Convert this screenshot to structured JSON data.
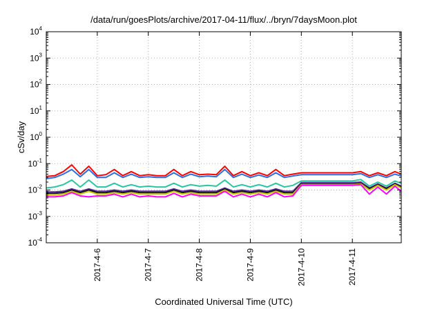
{
  "chart_data": {
    "type": "line",
    "title": "/data/run/goesPlots/archive/2017-04-11/flux/../bryn/7daysMoon.plot",
    "xlabel": "Coordinated Universal Time (UTC)",
    "ylabel": "cSv/day",
    "yscale": "log",
    "ylim": [
      0.0001,
      10000
    ],
    "y_ticks": [
      {
        "base": "10",
        "exp": "-4"
      },
      {
        "base": "10",
        "exp": "-3"
      },
      {
        "base": "10",
        "exp": "-2"
      },
      {
        "base": "10",
        "exp": "-1"
      },
      {
        "base": "10",
        "exp": "0"
      },
      {
        "base": "10",
        "exp": "1"
      },
      {
        "base": "10",
        "exp": "2"
      },
      {
        "base": "10",
        "exp": "3"
      },
      {
        "base": "10",
        "exp": "4"
      }
    ],
    "xlim": [
      "2017-04-05 00:00",
      "2017-04-11 23:00"
    ],
    "x_ticks": [
      "2017-4-6",
      "2017-4-7",
      "2017-4-8",
      "2017-4-9",
      "2017-4-10",
      "2017-4-11"
    ],
    "x_tick_dates": [
      "2017-04-06",
      "2017-04-07",
      "2017-04-08",
      "2017-04-09",
      "2017-04-10",
      "2017-04-11"
    ],
    "grid": true,
    "x": [
      "2017-04-05 00:00",
      "2017-04-05 04:00",
      "2017-04-05 08:00",
      "2017-04-05 12:00",
      "2017-04-05 16:00",
      "2017-04-05 20:00",
      "2017-04-06 00:00",
      "2017-04-06 04:00",
      "2017-04-06 08:00",
      "2017-04-06 12:00",
      "2017-04-06 16:00",
      "2017-04-06 20:00",
      "2017-04-07 00:00",
      "2017-04-07 04:00",
      "2017-04-07 08:00",
      "2017-04-07 12:00",
      "2017-04-07 16:00",
      "2017-04-07 20:00",
      "2017-04-08 00:00",
      "2017-04-08 04:00",
      "2017-04-08 08:00",
      "2017-04-08 12:00",
      "2017-04-08 16:00",
      "2017-04-08 20:00",
      "2017-04-09 00:00",
      "2017-04-09 04:00",
      "2017-04-09 08:00",
      "2017-04-09 12:00",
      "2017-04-09 16:00",
      "2017-04-09 20:00",
      "2017-04-10 00:00",
      "2017-04-10 04:00",
      "2017-04-10 08:00",
      "2017-04-10 12:00",
      "2017-04-10 16:00",
      "2017-04-10 20:00",
      "2017-04-11 00:00",
      "2017-04-11 04:00",
      "2017-04-11 08:00",
      "2017-04-11 12:00",
      "2017-04-11 16:00",
      "2017-04-11 20:00",
      "2017-04-11 23:00"
    ],
    "series": [
      {
        "color": "#ff0000",
        "values": [
          0.033,
          0.035,
          0.05,
          0.09,
          0.04,
          0.08,
          0.035,
          0.038,
          0.06,
          0.035,
          0.05,
          0.035,
          0.038,
          0.035,
          0.035,
          0.06,
          0.035,
          0.05,
          0.038,
          0.04,
          0.038,
          0.08,
          0.035,
          0.05,
          0.035,
          0.045,
          0.035,
          0.06,
          0.035,
          0.04,
          0.045,
          0.045,
          0.045,
          0.045,
          0.045,
          0.045,
          0.045,
          0.05,
          0.035,
          0.045,
          0.035,
          0.05,
          0.04
        ]
      },
      {
        "color": "#2a6ee6",
        "values": [
          0.027,
          0.03,
          0.04,
          0.06,
          0.032,
          0.06,
          0.03,
          0.03,
          0.045,
          0.03,
          0.04,
          0.03,
          0.032,
          0.03,
          0.03,
          0.045,
          0.03,
          0.04,
          0.032,
          0.034,
          0.032,
          0.06,
          0.03,
          0.04,
          0.03,
          0.037,
          0.03,
          0.045,
          0.03,
          0.034,
          0.038,
          0.038,
          0.038,
          0.038,
          0.038,
          0.038,
          0.038,
          0.042,
          0.03,
          0.038,
          0.03,
          0.04,
          0.034
        ]
      },
      {
        "color": "#26c7a0",
        "values": [
          0.012,
          0.013,
          0.016,
          0.024,
          0.013,
          0.024,
          0.013,
          0.013,
          0.018,
          0.013,
          0.016,
          0.013,
          0.014,
          0.013,
          0.013,
          0.018,
          0.013,
          0.016,
          0.014,
          0.015,
          0.014,
          0.024,
          0.013,
          0.016,
          0.013,
          0.016,
          0.013,
          0.018,
          0.013,
          0.015,
          0.022,
          0.022,
          0.022,
          0.022,
          0.022,
          0.022,
          0.022,
          0.025,
          0.014,
          0.02,
          0.014,
          0.022,
          0.018
        ]
      },
      {
        "color": "#5e2ba0",
        "values": [
          0.0085,
          0.0085,
          0.009,
          0.011,
          0.009,
          0.011,
          0.009,
          0.009,
          0.01,
          0.009,
          0.01,
          0.009,
          0.009,
          0.009,
          0.009,
          0.011,
          0.009,
          0.01,
          0.009,
          0.009,
          0.009,
          0.012,
          0.009,
          0.01,
          0.009,
          0.01,
          0.009,
          0.011,
          0.009,
          0.009,
          0.019,
          0.019,
          0.019,
          0.019,
          0.019,
          0.019,
          0.019,
          0.02,
          0.012,
          0.017,
          0.012,
          0.018,
          0.014
        ]
      },
      {
        "color": "#111111",
        "values": [
          0.0075,
          0.0075,
          0.008,
          0.01,
          0.008,
          0.01,
          0.008,
          0.008,
          0.009,
          0.008,
          0.009,
          0.008,
          0.008,
          0.008,
          0.008,
          0.01,
          0.008,
          0.009,
          0.008,
          0.008,
          0.008,
          0.011,
          0.008,
          0.009,
          0.008,
          0.009,
          0.008,
          0.01,
          0.008,
          0.008,
          0.017,
          0.017,
          0.017,
          0.017,
          0.017,
          0.017,
          0.017,
          0.018,
          0.011,
          0.016,
          0.011,
          0.017,
          0.013
        ]
      },
      {
        "color": "#c8c800",
        "values": [
          0.0065,
          0.0065,
          0.007,
          0.009,
          0.007,
          0.009,
          0.007,
          0.007,
          0.008,
          0.007,
          0.008,
          0.007,
          0.007,
          0.007,
          0.007,
          0.009,
          0.007,
          0.008,
          0.007,
          0.007,
          0.007,
          0.01,
          0.007,
          0.008,
          0.007,
          0.008,
          0.007,
          0.009,
          0.007,
          0.007,
          0.016,
          0.016,
          0.016,
          0.016,
          0.016,
          0.016,
          0.016,
          0.017,
          0.01,
          0.015,
          0.01,
          0.016,
          0.012
        ]
      },
      {
        "color": "#ff00ff",
        "values": [
          0.0055,
          0.0055,
          0.006,
          0.008,
          0.006,
          0.0055,
          0.006,
          0.006,
          0.007,
          0.0055,
          0.007,
          0.0055,
          0.006,
          0.0055,
          0.0055,
          0.0075,
          0.0055,
          0.007,
          0.006,
          0.006,
          0.006,
          0.009,
          0.0055,
          0.007,
          0.0055,
          0.007,
          0.0055,
          0.008,
          0.0055,
          0.006,
          0.015,
          0.015,
          0.015,
          0.015,
          0.015,
          0.015,
          0.015,
          0.016,
          0.007,
          0.013,
          0.007,
          0.014,
          0.009
        ]
      }
    ]
  }
}
